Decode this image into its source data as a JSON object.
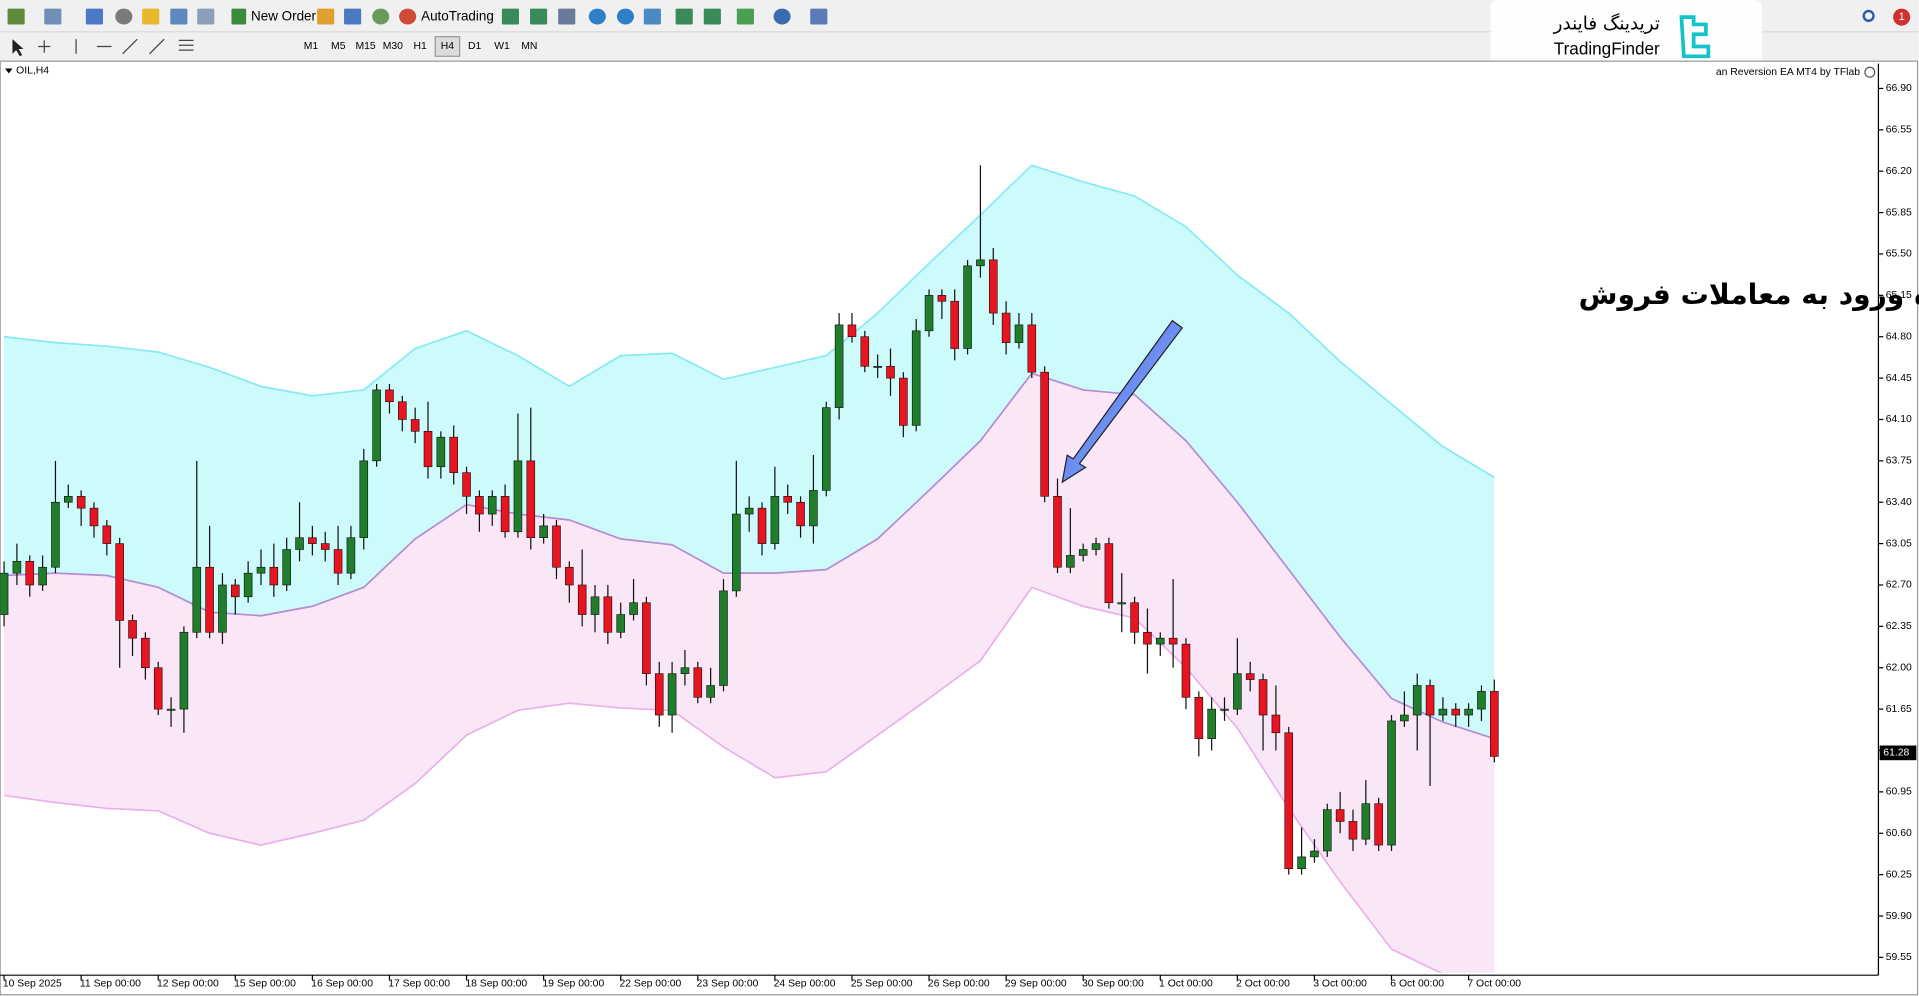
{
  "toolbar": {
    "new_order": "New Order",
    "auto_trading": "AutoTrading",
    "timeframes": [
      "M1",
      "M5",
      "M15",
      "M30",
      "H1",
      "H4",
      "D1",
      "W1",
      "MN"
    ],
    "active_timeframe": "H4",
    "notification_count": 1
  },
  "logo": {
    "persian": "تریدینگ فایندر",
    "latin": "TradingFinder"
  },
  "chart_data": {
    "type": "candlestick",
    "title": "OIL,H4",
    "indicator_label": "an Reversion EA MT4 by TFlab",
    "annotation": "محدوده ورود به معاملات فروش",
    "last_price": 61.28,
    "up_color": "#1f7d2c",
    "down_color": "#e8141f",
    "open": [
      62.45,
      62.8,
      62.9,
      62.7,
      62.85,
      63.4,
      63.45,
      63.35,
      63.2,
      63.05,
      62.4,
      62.25,
      62.0,
      61.65,
      61.65,
      62.3,
      62.85,
      62.3,
      62.7,
      62.6,
      62.8,
      62.85,
      62.7,
      63.0,
      63.1,
      63.05,
      63.0,
      62.8,
      63.1,
      63.75,
      64.35,
      64.25,
      64.1,
      64.0,
      63.7,
      63.95,
      63.65,
      63.45,
      63.3,
      63.45,
      63.15,
      63.75,
      63.1,
      63.2,
      62.85,
      62.7,
      62.45,
      62.6,
      62.3,
      62.45,
      62.55,
      61.95,
      61.6,
      61.95,
      62.0,
      61.75,
      61.85,
      62.65,
      63.3,
      63.35,
      63.05,
      63.45,
      63.4,
      63.2,
      63.5,
      64.2,
      64.9,
      64.8,
      64.55,
      64.55,
      64.45,
      64.05,
      64.85,
      65.15,
      65.1,
      64.7,
      65.4,
      65.45,
      65.0,
      64.75,
      64.9,
      64.5,
      63.45,
      62.85,
      62.95,
      63.0,
      63.05,
      62.55,
      62.55,
      62.3,
      62.2,
      62.25,
      62.2,
      61.75,
      61.4,
      61.65,
      61.65,
      61.95,
      61.9,
      61.6,
      61.45,
      60.3,
      60.4,
      60.45,
      60.8,
      60.7,
      60.55,
      60.85,
      60.5,
      61.55,
      61.6,
      61.85,
      61.6,
      61.65,
      61.6,
      61.65,
      61.8
    ],
    "high": [
      62.9,
      63.05,
      62.95,
      62.95,
      63.75,
      63.55,
      63.5,
      63.4,
      63.25,
      63.1,
      62.45,
      62.3,
      62.05,
      61.75,
      62.35,
      63.75,
      63.2,
      62.8,
      62.75,
      62.9,
      63.0,
      63.05,
      63.1,
      63.4,
      63.2,
      63.15,
      63.2,
      63.2,
      63.85,
      64.4,
      64.4,
      64.3,
      64.2,
      64.25,
      64.0,
      64.05,
      63.7,
      63.5,
      63.5,
      63.55,
      64.15,
      64.2,
      63.3,
      63.25,
      62.9,
      63.0,
      62.7,
      62.7,
      62.55,
      62.75,
      62.6,
      62.05,
      62.05,
      62.15,
      62.05,
      62.0,
      62.75,
      63.75,
      63.45,
      63.4,
      63.7,
      63.55,
      63.45,
      63.8,
      64.25,
      65.0,
      65.0,
      64.85,
      64.65,
      64.7,
      64.5,
      64.95,
      65.2,
      65.2,
      65.2,
      65.45,
      66.25,
      65.55,
      65.1,
      65.0,
      65.0,
      64.55,
      63.6,
      63.35,
      63.05,
      63.1,
      63.1,
      62.8,
      62.6,
      62.5,
      62.3,
      62.75,
      62.25,
      61.8,
      61.75,
      61.75,
      62.25,
      62.05,
      61.95,
      61.85,
      61.5,
      60.65,
      60.55,
      60.85,
      60.95,
      60.8,
      61.05,
      60.9,
      61.6,
      61.8,
      61.95,
      61.9,
      61.75,
      61.7,
      61.7,
      61.85,
      61.9
    ],
    "low": [
      62.35,
      62.7,
      62.6,
      62.65,
      62.8,
      63.35,
      63.2,
      63.1,
      62.95,
      62.0,
      62.1,
      61.9,
      61.6,
      61.5,
      61.45,
      62.25,
      62.25,
      62.2,
      62.45,
      62.55,
      62.7,
      62.6,
      62.65,
      62.9,
      62.95,
      62.9,
      62.7,
      62.75,
      63.0,
      63.7,
      64.15,
      64.0,
      63.9,
      63.6,
      63.6,
      63.55,
      63.3,
      63.15,
      63.2,
      63.1,
      63.1,
      63.0,
      63.05,
      62.75,
      62.55,
      62.35,
      62.3,
      62.2,
      62.25,
      62.4,
      61.85,
      61.5,
      61.45,
      61.85,
      61.7,
      61.7,
      61.8,
      62.6,
      63.15,
      62.95,
      63.0,
      63.3,
      63.1,
      63.05,
      63.45,
      64.1,
      64.75,
      64.5,
      64.45,
      64.3,
      63.95,
      64.0,
      64.8,
      64.95,
      64.6,
      64.65,
      65.3,
      64.9,
      64.65,
      64.7,
      64.45,
      63.4,
      62.8,
      62.8,
      62.9,
      62.95,
      62.5,
      62.3,
      62.2,
      61.95,
      62.1,
      62.0,
      61.65,
      61.25,
      61.3,
      61.55,
      61.6,
      61.8,
      61.3,
      61.3,
      60.25,
      60.25,
      60.35,
      60.4,
      60.6,
      60.45,
      60.5,
      60.45,
      60.45,
      61.5,
      61.3,
      61.0,
      61.55,
      61.5,
      61.5,
      61.55,
      61.2
    ],
    "close": [
      62.8,
      62.9,
      62.7,
      62.85,
      63.4,
      63.45,
      63.35,
      63.2,
      63.05,
      62.4,
      62.25,
      62.0,
      61.65,
      61.65,
      62.3,
      62.85,
      62.3,
      62.7,
      62.6,
      62.8,
      62.85,
      62.7,
      63.0,
      63.1,
      63.05,
      63.0,
      62.8,
      63.1,
      63.75,
      64.35,
      64.25,
      64.1,
      64.0,
      63.7,
      63.95,
      63.65,
      63.45,
      63.3,
      63.45,
      63.15,
      63.75,
      63.1,
      63.2,
      62.85,
      62.7,
      62.45,
      62.6,
      62.3,
      62.45,
      62.55,
      61.95,
      61.6,
      61.95,
      62.0,
      61.75,
      61.85,
      62.65,
      63.3,
      63.35,
      63.05,
      63.45,
      63.4,
      63.2,
      63.5,
      64.2,
      64.9,
      64.8,
      64.55,
      64.55,
      64.45,
      64.05,
      64.85,
      65.15,
      65.1,
      64.7,
      65.4,
      65.45,
      65.0,
      64.75,
      64.9,
      64.5,
      63.45,
      62.85,
      62.95,
      63.0,
      63.05,
      62.55,
      62.55,
      62.3,
      62.2,
      62.25,
      62.2,
      61.75,
      61.4,
      61.65,
      61.65,
      61.95,
      61.9,
      61.6,
      61.45,
      60.3,
      60.4,
      60.45,
      60.8,
      60.7,
      60.55,
      60.85,
      60.5,
      61.55,
      61.6,
      61.85,
      61.6,
      61.65,
      61.6,
      61.65,
      61.8,
      61.25
    ],
    "bands": {
      "x": [
        0,
        4,
        8,
        12,
        16,
        20,
        24,
        28,
        32,
        36,
        40,
        44,
        48,
        52,
        56,
        60,
        64,
        68,
        72,
        76,
        80,
        84,
        88,
        92,
        96,
        100,
        104,
        108,
        112,
        116
      ],
      "upper": [
        64.8,
        64.75,
        64.72,
        64.67,
        64.54,
        64.38,
        64.3,
        64.35,
        64.7,
        64.85,
        64.64,
        64.38,
        64.64,
        64.66,
        64.44,
        64.54,
        64.64,
        65.0,
        65.42,
        65.83,
        66.25,
        66.11,
        65.99,
        65.73,
        65.32,
        65.0,
        64.59,
        64.23,
        63.87,
        63.61
      ],
      "middle": [
        62.78,
        62.8,
        62.78,
        62.68,
        62.47,
        62.44,
        62.52,
        62.68,
        63.09,
        63.38,
        63.3,
        63.25,
        63.09,
        63.04,
        62.8,
        62.8,
        62.83,
        63.09,
        63.5,
        63.92,
        64.49,
        64.35,
        64.31,
        63.92,
        63.4,
        62.83,
        62.26,
        61.74,
        61.54,
        61.4
      ],
      "lower": [
        60.92,
        60.86,
        60.81,
        60.79,
        60.6,
        60.5,
        60.6,
        60.71,
        61.02,
        61.43,
        61.64,
        61.7,
        61.66,
        61.64,
        61.33,
        61.07,
        61.12,
        61.43,
        61.74,
        62.06,
        62.68,
        62.52,
        62.42,
        62.0,
        61.49,
        60.81,
        60.19,
        59.62,
        59.41,
        59.26
      ],
      "upper_color": "#86eaf2",
      "middle_color": "#b98ad0",
      "lower_color": "#eab0ea",
      "upper_fill": "#cdfbfc",
      "lower_fill": "#f9e7f7"
    },
    "xlim": [
      -0.3,
      145.9
    ],
    "ylim": [
      59.42,
      67.11
    ],
    "xticks": [
      {
        "value": 0,
        "label": "10 Sep 2025"
      },
      {
        "value": 6,
        "label": "11 Sep 00:00"
      },
      {
        "value": 12,
        "label": "12 Sep 00:00"
      },
      {
        "value": 18,
        "label": "15 Sep 00:00"
      },
      {
        "value": 24,
        "label": "16 Sep 00:00"
      },
      {
        "value": 30,
        "label": "17 Sep 00:00"
      },
      {
        "value": 36,
        "label": "18 Sep 00:00"
      },
      {
        "value": 42,
        "label": "19 Sep 00:00"
      },
      {
        "value": 48,
        "label": "22 Sep 00:00"
      },
      {
        "value": 54,
        "label": "23 Sep 00:00"
      },
      {
        "value": 60,
        "label": "24 Sep 00:00"
      },
      {
        "value": 66,
        "label": "25 Sep 00:00"
      },
      {
        "value": 72,
        "label": "26 Sep 00:00"
      },
      {
        "value": 78,
        "label": "29 Sep 00:00"
      },
      {
        "value": 84,
        "label": "30 Sep 00:00"
      },
      {
        "value": 90,
        "label": "1 Oct 00:00"
      },
      {
        "value": 96,
        "label": "2 Oct 00:00"
      },
      {
        "value": 102,
        "label": "3 Oct 00:00"
      },
      {
        "value": 108,
        "label": "6 Oct 00:00"
      },
      {
        "value": 114,
        "label": "7 Oct 00:00"
      }
    ],
    "yticks": [
      {
        "value": 66.9,
        "label": "66.90"
      },
      66.55,
      {
        "value": 66.2,
        "label": "66.20"
      },
      65.85,
      {
        "value": 65.5,
        "label": "65.50"
      },
      65.15,
      {
        "value": 64.8,
        "label": "64.80"
      },
      64.45,
      {
        "value": 64.1,
        "label": "64.10"
      },
      63.75,
      {
        "value": 63.4,
        "label": "63.40"
      },
      63.05,
      {
        "value": 62.7,
        "label": "62.70"
      },
      62.35,
      {
        "value": 62,
        "label": "62.00"
      },
      61.65,
      {
        "value": 61.3,
        "label": "61.30"
      },
      60.95,
      {
        "value": 60.6,
        "label": "60.60"
      },
      60.25,
      {
        "value": 59.9,
        "label": "59.90"
      },
      59.55
    ]
  }
}
